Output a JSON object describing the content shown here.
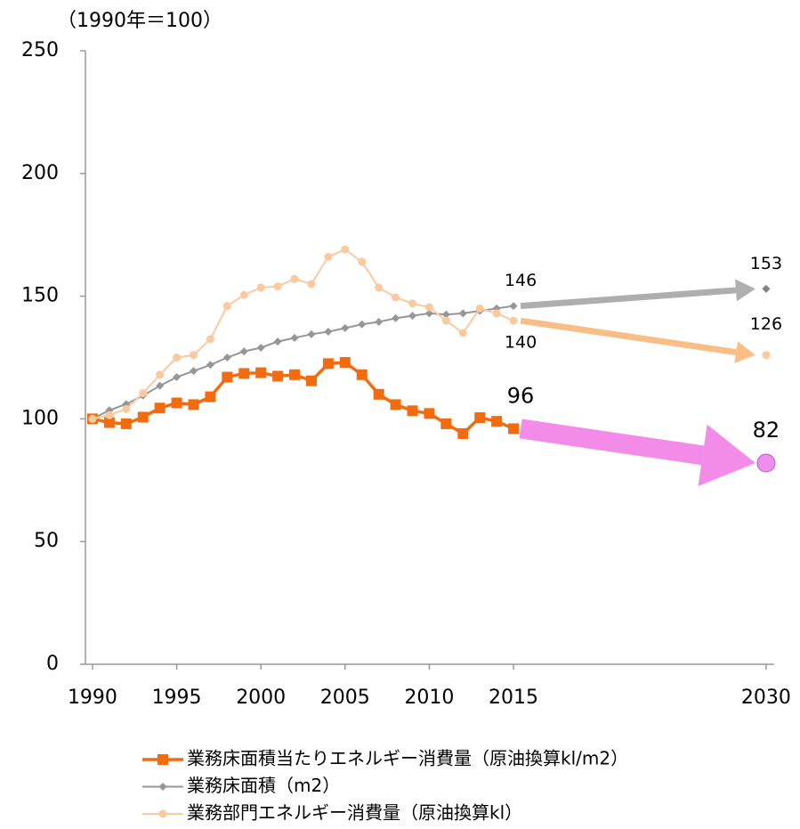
{
  "chart_data": {
    "type": "line",
    "y_axis_label": "（1990年＝100）",
    "x": [
      1990,
      1991,
      1992,
      1993,
      1994,
      1995,
      1996,
      1997,
      1998,
      1999,
      2000,
      2001,
      2002,
      2003,
      2004,
      2005,
      2006,
      2007,
      2008,
      2009,
      2010,
      2011,
      2012,
      2013,
      2014,
      2015,
      2030
    ],
    "xlim": [
      1989.58,
      2030.48
    ],
    "xticks": [
      1990,
      1995,
      2000,
      2005,
      2010,
      2015,
      2030
    ],
    "ylim": [
      0,
      250
    ],
    "yticks": [
      0,
      50,
      100,
      150,
      200,
      250
    ],
    "series": [
      {
        "name": "業務床面積当たりエネルギー消費量（原油換算kl/m2）",
        "color": "#f26b0f",
        "marker": "square",
        "projection_color": "#f27fe6",
        "values": [
          100,
          98.5,
          98,
          100.7,
          104.4,
          106.5,
          105.8,
          109,
          117,
          118.5,
          118.8,
          117.4,
          118,
          115.5,
          122.5,
          123,
          118,
          110,
          105.8,
          103.3,
          102.2,
          98,
          94,
          100.5,
          99,
          96,
          82
        ]
      },
      {
        "name": "業務床面積（m2）",
        "color": "#969696",
        "marker": "diamond",
        "projection_color": "#a6a6a6",
        "values": [
          100,
          103.5,
          106,
          109.5,
          113.5,
          117,
          119.5,
          122,
          125,
          127.5,
          129,
          131.5,
          133,
          134.5,
          135.5,
          137,
          138.5,
          139.5,
          141,
          142,
          143,
          142.5,
          143,
          144,
          145,
          146,
          153
        ]
      },
      {
        "name": "業務部門エネルギー消費量（原油換算kl）",
        "color": "#f9c9a0",
        "marker": "circle",
        "projection_color": "#f9b77a",
        "values": [
          100,
          101.5,
          104,
          110.5,
          118,
          125,
          126,
          132.5,
          146,
          150.5,
          153.5,
          154,
          157,
          155,
          166,
          169,
          164,
          153.5,
          149.5,
          147,
          145.5,
          140,
          135,
          145,
          143,
          140,
          126
        ]
      }
    ]
  }
}
